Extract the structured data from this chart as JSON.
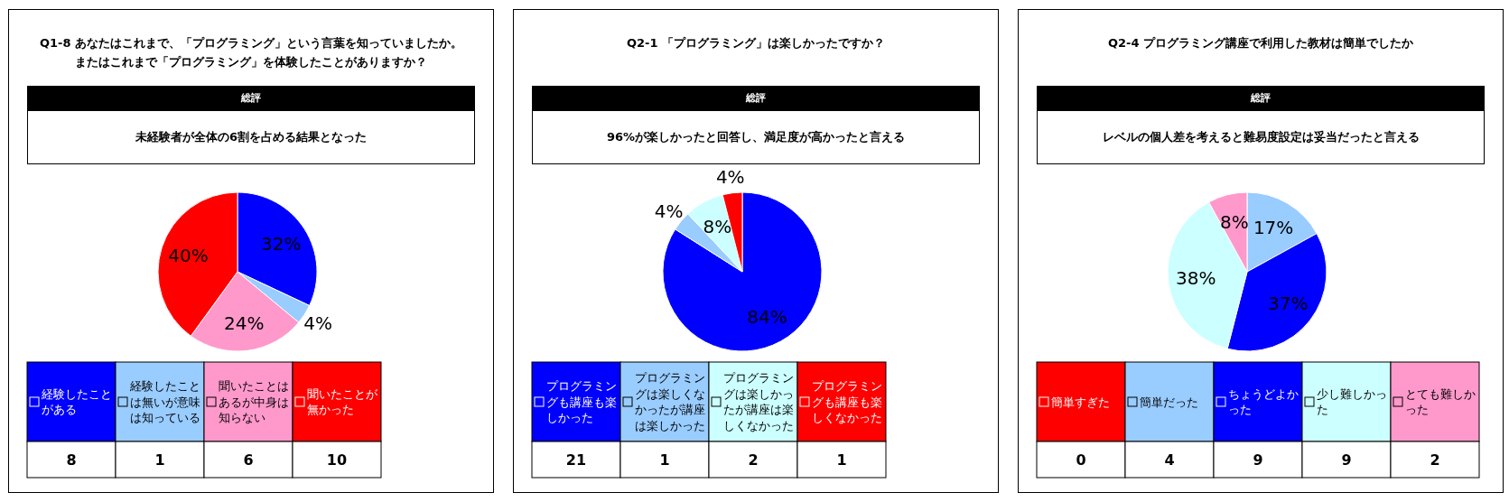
{
  "chart_data": [
    {
      "type": "pie",
      "title": "Q1-8 あなたはこれまで、「プログラミング」という言葉を知っていましたか。またはこれまで「プログラミング」を体験したことがありますか？",
      "annotations": [
        "総評",
        "未経験者が全体の6割を占める結果となった",
        {
          "text": "8",
          "x": "経験したことがある"
        },
        {
          "text": "1",
          "x": "経験したことは無いが意味は知っている"
        },
        {
          "text": "6",
          "x": "聞いたことはあるが中身は知らない"
        },
        {
          "text": "10",
          "x": "聞いたことが無かった"
        }
      ],
      "categories": [
        "経験したことがある",
        "経験したことは無いが意味は知っている",
        "聞いたことはあるが中身は知らない",
        "聞いたことが無かった"
      ],
      "values": [
        32,
        4,
        24,
        40
      ],
      "colors": [
        "#0000ff",
        "#99ccff",
        "#ff99cc",
        "#ff0000"
      ],
      "value_labels": [
        "32%",
        "4%",
        "24%",
        "40%"
      ],
      "legend": "bottom"
    },
    {
      "type": "pie",
      "title": "Q2-1 「プログラミング」は楽しかったですか？",
      "annotations": [
        "総評",
        "96%が楽しかったと回答し、満足度が高かったと言える",
        {
          "text": "21",
          "x": "プログラミングも講座も楽しかった"
        },
        {
          "text": "1",
          "x": "プログラミングは楽しくなかったが講座は楽しかった"
        },
        {
          "text": "2",
          "x": "プログラミングは楽しかったが講座は楽しくなかった"
        },
        {
          "text": "1",
          "x": "プログラミングも講座も楽しくなかった"
        }
      ],
      "categories": [
        "プログラミングも講座も楽しかった",
        "プログラミングは楽しくなかったが講座は楽しかった",
        "プログラミングは楽しかったが講座は楽しくなかった",
        "プログラミングも講座も楽しくなかった"
      ],
      "values": [
        84,
        4,
        8,
        4
      ],
      "colors": [
        "#0000ff",
        "#99ccff",
        "#ccffff",
        "#ff0000"
      ],
      "value_labels": [
        "84%",
        "4%",
        "8%",
        "4%"
      ],
      "legend": "bottom"
    },
    {
      "type": "pie",
      "title": "Q2-4 プログラミング講座で利用した教材は簡単でしたか",
      "annotations": [
        "総評",
        "レベルの個人差を考えると難易度設定は妥当だったと言える",
        {
          "text": "0",
          "x": "簡単すぎた"
        },
        {
          "text": "4",
          "x": "簡単だった"
        },
        {
          "text": "9",
          "x": "ちょうどよかった"
        },
        {
          "text": "9",
          "x": "少し難しかった"
        },
        {
          "text": "2",
          "x": "とても難しかった"
        }
      ],
      "categories": [
        "簡単すぎた",
        "簡単だった",
        "ちょうどよかった",
        "少し難しかった",
        "とても難しかった"
      ],
      "values": [
        0,
        17,
        37,
        38,
        8
      ],
      "colors": [
        "#ff0000",
        "#99ccff",
        "#0000ff",
        "#ccffff",
        "#ff99cc"
      ],
      "value_labels": [
        null,
        "17%",
        "37%",
        "38%",
        "8%"
      ],
      "legend": "bottom"
    }
  ]
}
